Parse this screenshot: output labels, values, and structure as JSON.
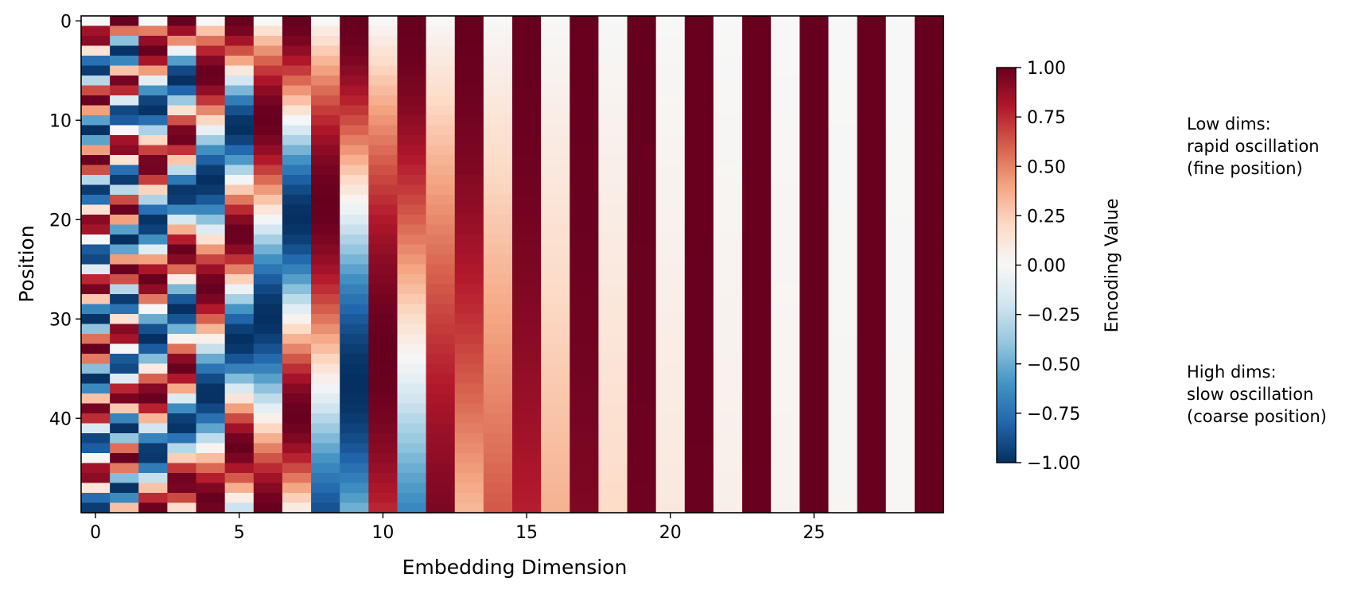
{
  "chart_data": {
    "type": "heatmap",
    "title": "",
    "xlabel": "Embedding Dimension",
    "ylabel": "Position",
    "x_range": [
      0,
      29
    ],
    "y_range": [
      0,
      49
    ],
    "x_ticks": [
      0,
      5,
      10,
      15,
      20,
      25
    ],
    "y_ticks": [
      0,
      10,
      20,
      30,
      40
    ],
    "n_positions": 50,
    "n_dims": 30,
    "y_inverted": true,
    "grid": false,
    "colormap": "RdBu_r",
    "colormap_stops": [
      "#053061",
      "#2166ac",
      "#4393c3",
      "#92c5de",
      "#d1e5f0",
      "#f7f7f7",
      "#fddbc7",
      "#f4a582",
      "#d6604d",
      "#b2182b",
      "#67001f"
    ],
    "value_range": [
      -1,
      1
    ],
    "encoding": "sinusoidal positional encoding: even dims sin(pos / 10000^(d/30)), odd dims cos(pos / 10000^((d-1)/30))",
    "colorbar": {
      "label": "Encoding Value",
      "ticks": [
        1.0,
        0.75,
        0.5,
        0.25,
        0.0,
        -0.25,
        -0.5,
        -0.75,
        -1.0
      ],
      "tick_labels": [
        "1.00",
        "0.75",
        "0.50",
        "0.25",
        "0.00",
        "−0.25",
        "−0.50",
        "−0.75",
        "−1.00"
      ]
    },
    "annotations": [
      {
        "lines": [
          "Low dims:",
          "rapid oscillation",
          "(fine position)"
        ]
      },
      {
        "lines": [
          "High dims:",
          "slow oscillation",
          "(coarse position)"
        ]
      }
    ]
  }
}
